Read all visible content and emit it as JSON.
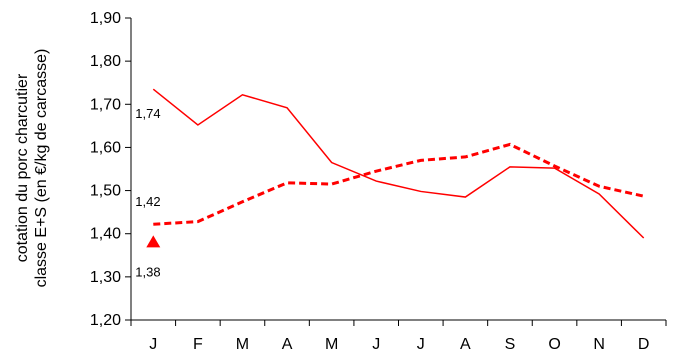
{
  "chart_data": {
    "type": "line",
    "categories": [
      "J",
      "F",
      "M",
      "A",
      "M",
      "J",
      "J",
      "A",
      "S",
      "O",
      "N",
      "D"
    ],
    "ylabel_line1": "cotation du porc charcutier",
    "ylabel_line2": "classe E+S  (en €/kg de carcasse)",
    "ylim": [
      1.2,
      1.9
    ],
    "yticks": [
      "1,20",
      "1,30",
      "1,40",
      "1,50",
      "1,60",
      "1,70",
      "1,80",
      "1,90"
    ],
    "grid": false,
    "legend": "none",
    "series": [
      {
        "style": "solid",
        "color": "#ff0000",
        "values": [
          1.735,
          1.652,
          1.722,
          1.692,
          1.565,
          1.522,
          1.498,
          1.485,
          1.555,
          1.552,
          1.492,
          1.39
        ]
      },
      {
        "style": "dashed",
        "color": "#ff0000",
        "values": [
          1.422,
          1.428,
          1.474,
          1.518,
          1.515,
          1.545,
          1.57,
          1.578,
          1.607,
          1.557,
          1.51,
          1.487
        ]
      },
      {
        "style": "marker-triangle",
        "color": "#ff0000",
        "values": [
          1.38,
          null,
          null,
          null,
          null,
          null,
          null,
          null,
          null,
          null,
          null,
          null
        ]
      }
    ],
    "annotations": [
      {
        "text": "1,74",
        "series": 0,
        "index": 0
      },
      {
        "text": "1,42",
        "series": 1,
        "index": 0
      },
      {
        "text": "1,38",
        "series": 2,
        "index": 0
      }
    ]
  }
}
